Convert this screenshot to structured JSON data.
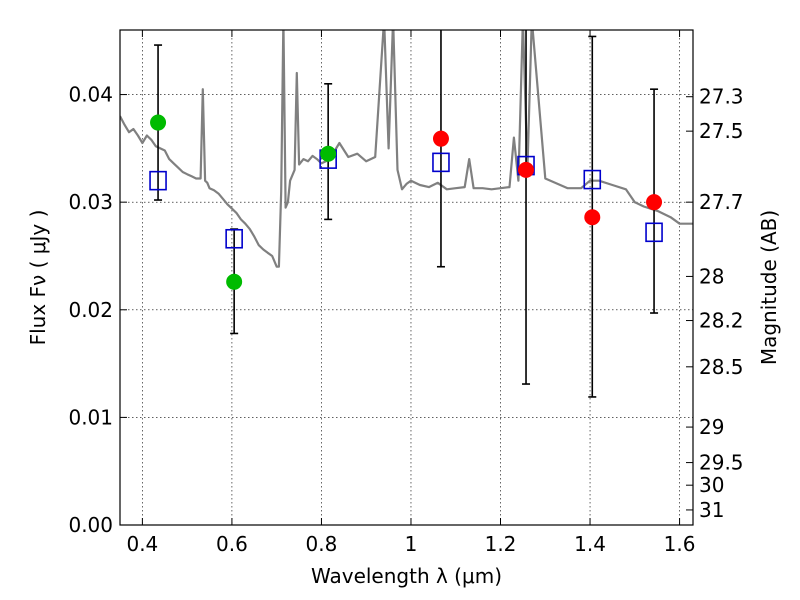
{
  "chart_data": {
    "type": "scatter",
    "title": "",
    "xlabel": "Wavelength  λ (μm)",
    "ylabel": "Flux  Fν  ( μJy )",
    "ylabel_right": "Magnitude (AB)",
    "xlim": [
      0.35,
      1.63
    ],
    "ylim": [
      0.0,
      0.046
    ],
    "grid": true,
    "x_ticks": [
      0.4,
      0.6,
      0.8,
      1.0,
      1.2,
      1.4,
      1.6
    ],
    "x_tick_labels": [
      "0.4",
      "0.6",
      "0.8",
      "1",
      "1.2",
      "1.4",
      "1.6"
    ],
    "y_ticks": [
      0.0,
      0.01,
      0.02,
      0.03,
      0.04
    ],
    "y_tick_labels": [
      "0.00",
      "0.01",
      "0.02",
      "0.03",
      "0.04"
    ],
    "right_ticks": [
      {
        "label": "27.3",
        "flux": 0.0398
      },
      {
        "label": "27.5",
        "flux": 0.0366
      },
      {
        "label": "27.7",
        "flux": 0.03
      },
      {
        "label": "28",
        "flux": 0.0231
      },
      {
        "label": "28.2",
        "flux": 0.019
      },
      {
        "label": "28.5",
        "flux": 0.0147
      },
      {
        "label": "29",
        "flux": 0.0091
      },
      {
        "label": "29.5",
        "flux": 0.0058
      },
      {
        "label": "30",
        "flux": 0.0037
      },
      {
        "label": "31",
        "flux": 0.0014
      }
    ],
    "series": [
      {
        "type": "line",
        "color": "#808080",
        "x": [
          0.35,
          0.36,
          0.37,
          0.38,
          0.39,
          0.4,
          0.41,
          0.42,
          0.43,
          0.44,
          0.45,
          0.46,
          0.47,
          0.48,
          0.49,
          0.5,
          0.51,
          0.52,
          0.53,
          0.535,
          0.54,
          0.545,
          0.55,
          0.56,
          0.57,
          0.58,
          0.59,
          0.6,
          0.61,
          0.62,
          0.63,
          0.64,
          0.65,
          0.66,
          0.67,
          0.68,
          0.69,
          0.7,
          0.705,
          0.71,
          0.715,
          0.72,
          0.725,
          0.73,
          0.74,
          0.745,
          0.75,
          0.76,
          0.77,
          0.78,
          0.79,
          0.8,
          0.81,
          0.82,
          0.83,
          0.84,
          0.86,
          0.88,
          0.9,
          0.92,
          0.94,
          0.95,
          0.96,
          0.97,
          0.98,
          0.99,
          1.0,
          1.02,
          1.04,
          1.06,
          1.08,
          1.1,
          1.12,
          1.13,
          1.14,
          1.16,
          1.18,
          1.2,
          1.22,
          1.23,
          1.24,
          1.25,
          1.26,
          1.27,
          1.3,
          1.35,
          1.38,
          1.4,
          1.42,
          1.45,
          1.48,
          1.5,
          1.52,
          1.55,
          1.58,
          1.6,
          1.63
        ],
        "y": [
          0.038,
          0.0372,
          0.0365,
          0.0368,
          0.0362,
          0.0355,
          0.0362,
          0.0358,
          0.0352,
          0.035,
          0.0348,
          0.034,
          0.0336,
          0.0332,
          0.0328,
          0.0326,
          0.0324,
          0.0322,
          0.0322,
          0.0405,
          0.032,
          0.0318,
          0.0313,
          0.0311,
          0.0308,
          0.0303,
          0.0298,
          0.0294,
          0.029,
          0.0284,
          0.028,
          0.0275,
          0.0268,
          0.026,
          0.0256,
          0.0253,
          0.025,
          0.024,
          0.024,
          0.031,
          0.047,
          0.0295,
          0.03,
          0.032,
          0.033,
          0.042,
          0.0335,
          0.034,
          0.0338,
          0.0343,
          0.034,
          0.0336,
          0.0338,
          0.0342,
          0.0348,
          0.0355,
          0.0342,
          0.0345,
          0.0338,
          0.0342,
          0.047,
          0.035,
          0.047,
          0.033,
          0.0312,
          0.0317,
          0.032,
          0.0316,
          0.0314,
          0.0318,
          0.0312,
          0.0313,
          0.0314,
          0.034,
          0.0313,
          0.0313,
          0.0312,
          0.0313,
          0.0314,
          0.036,
          0.032,
          0.047,
          0.033,
          0.047,
          0.0322,
          0.0313,
          0.0313,
          0.032,
          0.032,
          0.0316,
          0.0312,
          0.03,
          0.0296,
          0.0292,
          0.0286,
          0.028,
          0.028
        ]
      },
      {
        "type": "scatter",
        "marker": "filled-circle",
        "color": "#00bb00",
        "x": [
          0.435,
          0.605,
          0.815
        ],
        "y": [
          0.0374,
          0.0226,
          0.0345
        ]
      },
      {
        "type": "scatter",
        "marker": "filled-circle",
        "color": "#ff0000",
        "x": [
          1.067,
          1.257,
          1.405,
          1.543
        ],
        "y": [
          0.0359,
          0.033,
          0.0286,
          0.03
        ]
      },
      {
        "type": "scatter",
        "marker": "open-square",
        "color": "#0000cc",
        "x": [
          0.435,
          0.605,
          0.815,
          1.067,
          1.257,
          1.405,
          1.543
        ],
        "y": [
          0.032,
          0.0266,
          0.034,
          0.0337,
          0.0334,
          0.0321,
          0.0272
        ]
      },
      {
        "type": "errorbar",
        "color": "#000000",
        "x": [
          0.435,
          0.605,
          0.815,
          1.067,
          1.257,
          1.405,
          1.543
        ],
        "ylow": [
          0.0302,
          0.0178,
          0.0284,
          0.024,
          0.0131,
          0.0119,
          0.0197
        ],
        "yhigh": [
          0.0446,
          0.0275,
          0.041,
          0.047,
          0.047,
          0.0454,
          0.0405
        ]
      }
    ]
  }
}
